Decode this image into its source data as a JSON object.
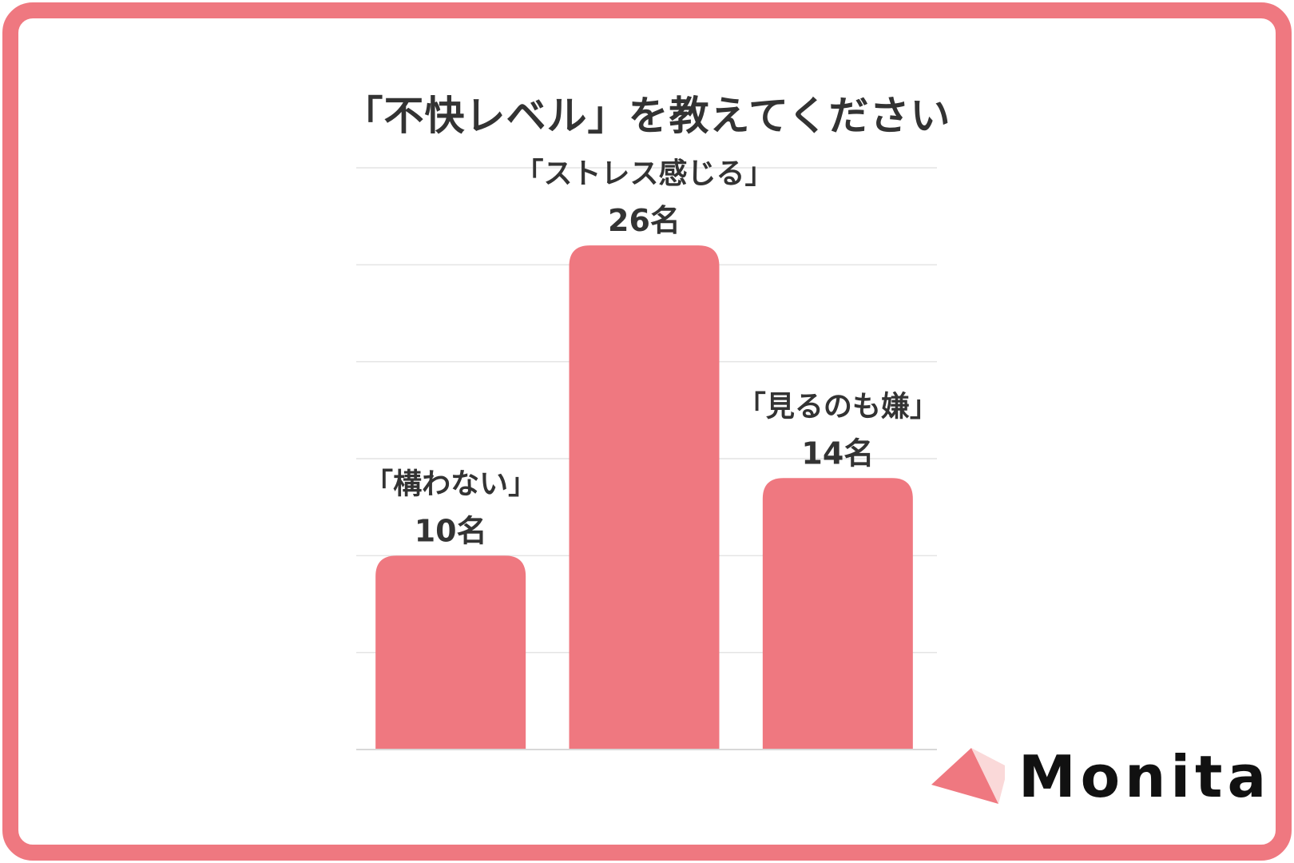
{
  "chart_data": {
    "type": "bar",
    "title": "「不快レベル」を教えてください",
    "categories": [
      "「構わない」",
      "「ストレス感じる」",
      "「見るのも嫌」"
    ],
    "values": [
      10,
      26,
      14
    ],
    "value_labels": [
      "10名",
      "26名",
      "14名"
    ],
    "ylim": [
      0,
      30
    ],
    "grid": true,
    "bar_color": "#ef7880",
    "grid_color": "#e4e4e4"
  },
  "brand": {
    "name": "Monita",
    "accent": "#ef7880"
  }
}
